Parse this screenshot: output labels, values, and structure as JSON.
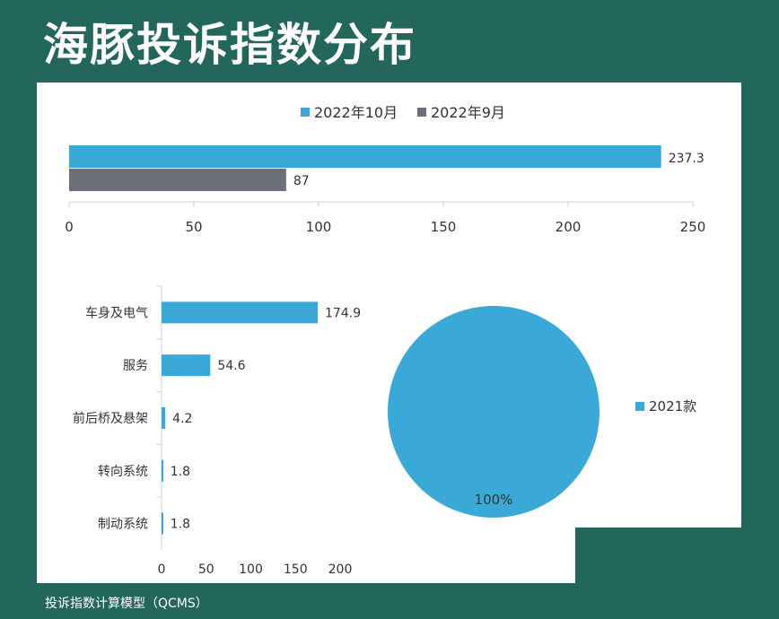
{
  "title": "海豚投诉指数分布",
  "footer": "投诉指数计算模型（QCMS）",
  "colors": {
    "blue": "#3ba9d8",
    "gray": "#6b6f79",
    "background": "#23665b"
  },
  "chart_data": [
    {
      "type": "bar",
      "orientation": "horizontal",
      "legend_position": "top",
      "series": [
        {
          "name": "2022年10月",
          "values": [
            237.3
          ],
          "color": "#3ba9d8"
        },
        {
          "name": "2022年9月",
          "values": [
            87
          ],
          "color": "#6b6f79"
        }
      ],
      "xlim": [
        0,
        250
      ],
      "xticks": [
        0,
        50,
        100,
        150,
        200,
        250
      ],
      "grid": false
    },
    {
      "type": "bar",
      "orientation": "horizontal",
      "categories": [
        "车身及电气",
        "服务",
        "前后桥及悬架",
        "转向系统",
        "制动系统"
      ],
      "values": [
        174.9,
        54.6,
        4.2,
        1.8,
        1.8
      ],
      "xlim": [
        0,
        200
      ],
      "xticks": [
        0,
        50,
        100,
        150,
        200
      ],
      "grid": false
    },
    {
      "type": "pie",
      "labels": [
        "2021款"
      ],
      "values": [
        100
      ],
      "value_labels": [
        "100%"
      ],
      "legend_position": "right",
      "color": "#3ba9d8"
    }
  ]
}
